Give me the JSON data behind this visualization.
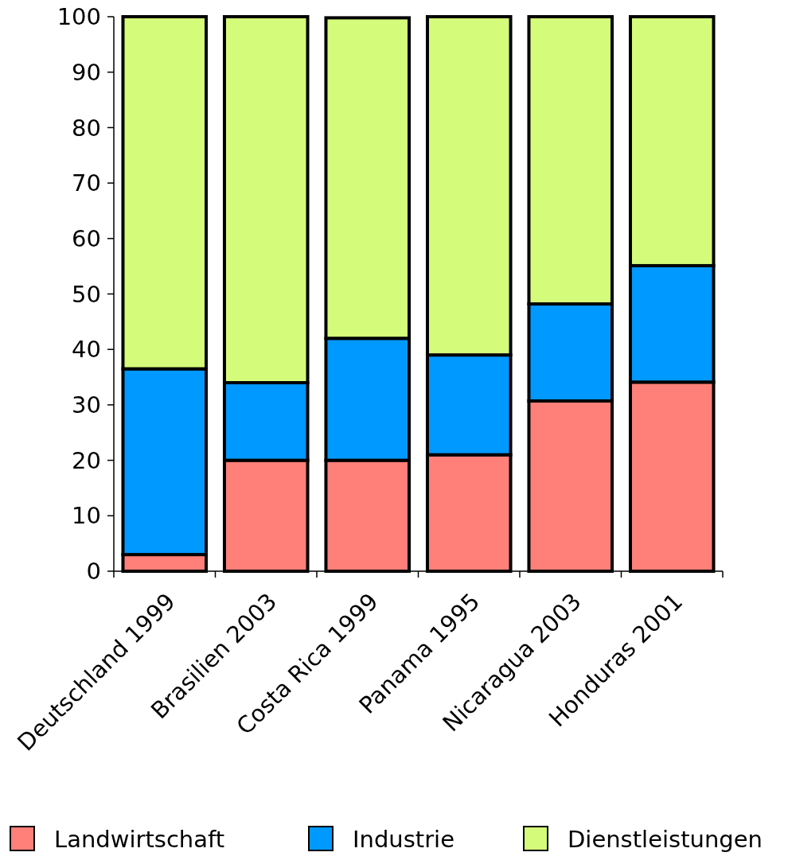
{
  "chart_data": {
    "type": "bar",
    "stacked": true,
    "categories": [
      "Deutschland 1999",
      "Brasilien 2003",
      "Costa Rica 1999",
      "Panama 1995",
      "Nicaragua 2003",
      "Honduras 2001"
    ],
    "series": [
      {
        "name": "Landwirtschaft",
        "color": "#ff8078",
        "values": [
          3,
          20,
          20,
          21,
          30.7,
          34.1
        ]
      },
      {
        "name": "Industrie",
        "color": "#0099ff",
        "values": [
          33.5,
          14,
          22,
          18,
          17.5,
          21
        ]
      },
      {
        "name": "Dienstleistungen",
        "color": "#d5fb7a",
        "values": [
          63.5,
          66,
          57.8,
          61,
          51.8,
          44.9
        ]
      }
    ],
    "ylim": [
      0,
      100
    ],
    "yticks": [
      0,
      10,
      20,
      30,
      40,
      50,
      60,
      70,
      80,
      90,
      100
    ],
    "legend": "bottom"
  }
}
